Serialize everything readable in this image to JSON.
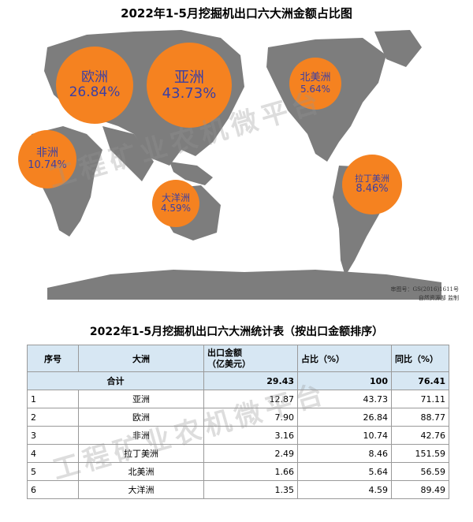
{
  "chart_title": "2022年1-5月挖掘机出口六大洲金额占比图",
  "map_note": {
    "line1": "审图号：GS(2016)1611号",
    "line2": "自然资源部 监制"
  },
  "watermark": "工程矿业农机微平台",
  "chart_data": {
    "type": "table",
    "title": "2022年1-5月挖掘机出口六大洲统计表（按出口金额排序）",
    "columns": [
      "序号",
      "大洲",
      "出口金额\n（亿美元）",
      "占比（%）",
      "同比（%）"
    ],
    "total_row": {
      "label": "合计",
      "amount": "29.43",
      "share": "100",
      "yoy": "76.41"
    },
    "rows": [
      {
        "rank": "1",
        "region": "亚洲",
        "amount": "12.87",
        "share": "43.73",
        "yoy": "71.11"
      },
      {
        "rank": "2",
        "region": "欧洲",
        "amount": "7.90",
        "share": "26.84",
        "yoy": "88.77"
      },
      {
        "rank": "3",
        "region": "非洲",
        "amount": "3.16",
        "share": "10.74",
        "yoy": "42.76"
      },
      {
        "rank": "4",
        "region": "拉丁美洲",
        "amount": "2.49",
        "share": "8.46",
        "yoy": "151.59"
      },
      {
        "rank": "5",
        "region": "北美洲",
        "amount": "1.66",
        "share": "5.64",
        "yoy": "56.59"
      },
      {
        "rank": "6",
        "region": "大洋洲",
        "amount": "1.35",
        "share": "4.59",
        "yoy": "89.49"
      }
    ],
    "bubbles": [
      {
        "region": "欧洲",
        "share_label": "26.84%",
        "share": 26.84
      },
      {
        "region": "亚洲",
        "share_label": "43.73%",
        "share": 43.73
      },
      {
        "region": "北美洲",
        "share_label": "5.64%",
        "share": 5.64
      },
      {
        "region": "非洲",
        "share_label": "10.74%",
        "share": 10.74
      },
      {
        "region": "大洋洲",
        "share_label": "4.59%",
        "share": 4.59
      },
      {
        "region": "拉丁美洲",
        "share_label": "8.46%",
        "share": 8.46
      }
    ],
    "colors": {
      "bubble": "#f58220",
      "bubble_text": "#3a3fa5",
      "land": "#7d7d7d",
      "table_header": "#d7e7f3"
    }
  }
}
